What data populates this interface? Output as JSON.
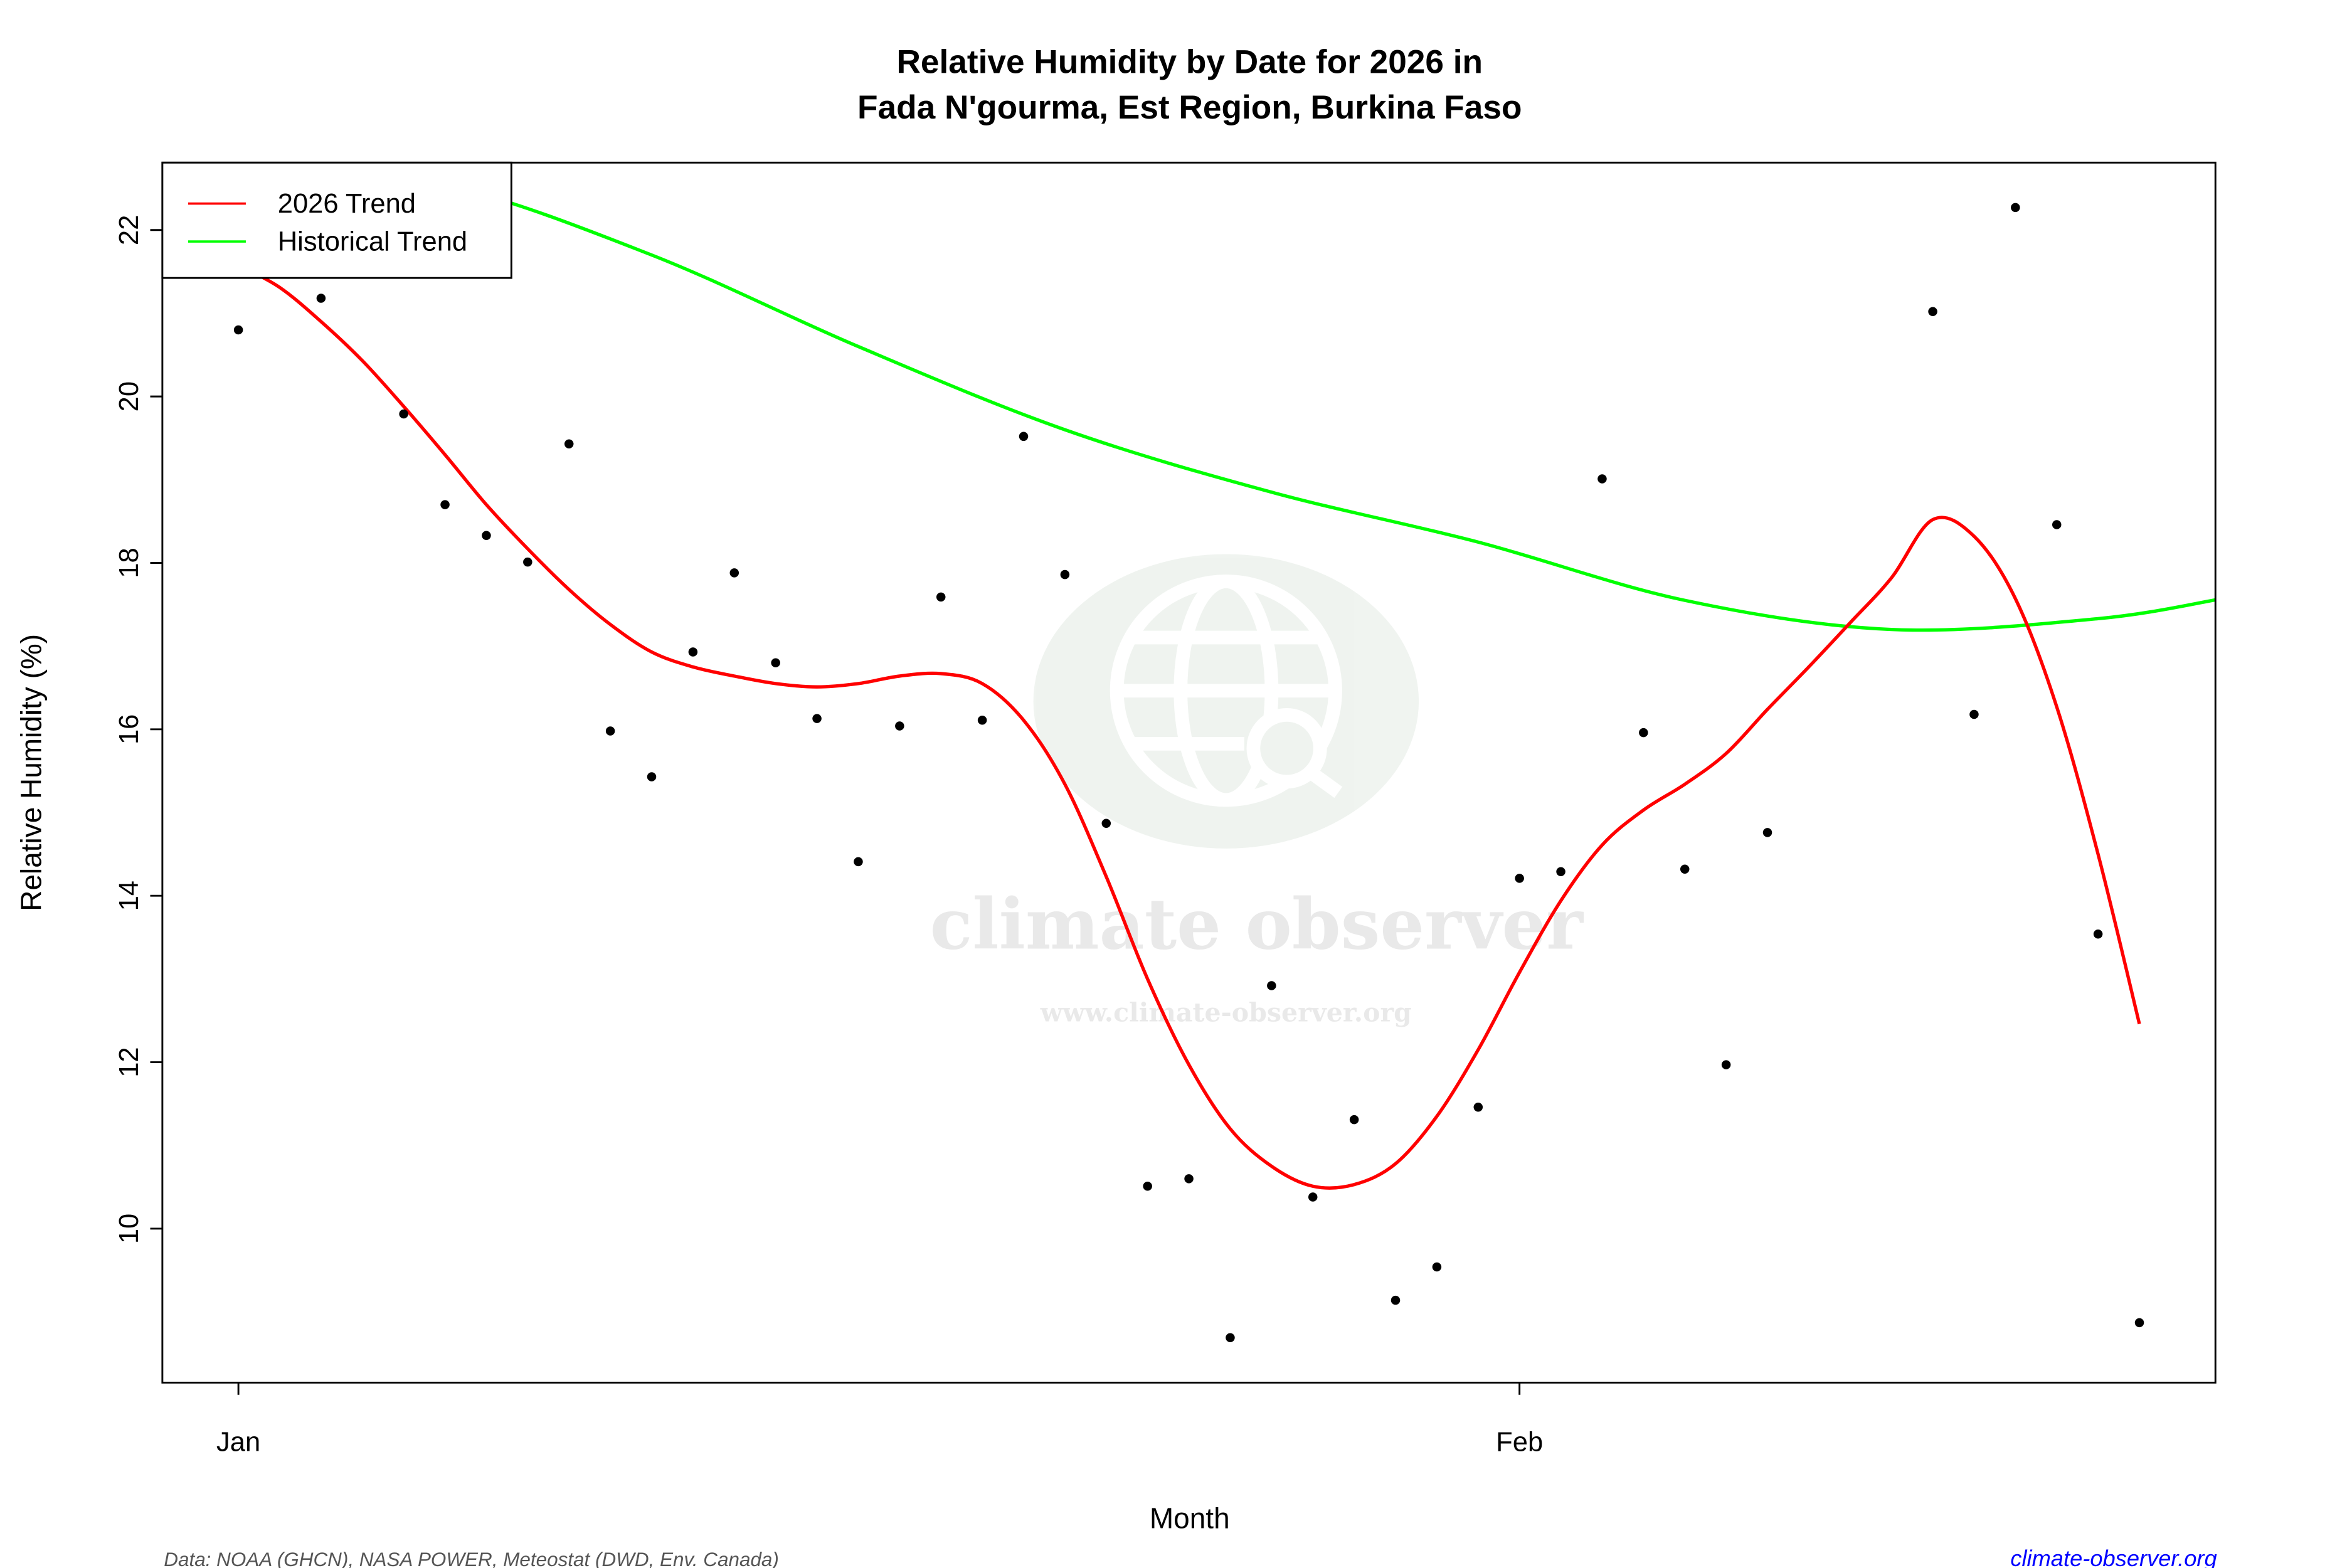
{
  "chart_data": {
    "type": "scatter",
    "title": "Relative Humidity by Date for 2026 in",
    "subtitle": "Fada N'gourma, Est Region, Burkina Faso",
    "xlabel": "Month",
    "ylabel": "Relative Humidity (%)",
    "xlim": [
      "2026-01-01",
      "2026-02-16"
    ],
    "ylim": [
      8.15,
      22.81
    ],
    "x_ticks": [
      {
        "date": "2026-01-01",
        "label": "Jan"
      },
      {
        "date": "2026-02-01",
        "label": "Feb"
      }
    ],
    "y_ticks": [
      10,
      12,
      14,
      16,
      18,
      20,
      22
    ],
    "grid": false,
    "legend": {
      "placement": "top-left",
      "entries": [
        {
          "label": "2026 Trend",
          "color": "#ff0000"
        },
        {
          "label": "Historical Trend",
          "color": "#00ff00"
        }
      ]
    },
    "points": {
      "color": "#000000",
      "x": [
        "2026-01-01",
        "2026-01-03",
        "2026-01-05",
        "2026-01-06",
        "2026-01-07",
        "2026-01-08",
        "2026-01-09",
        "2026-01-10",
        "2026-01-11",
        "2026-01-12",
        "2026-01-13",
        "2026-01-14",
        "2026-01-15",
        "2026-01-16",
        "2026-01-17",
        "2026-01-18",
        "2026-01-19",
        "2026-01-20",
        "2026-01-21",
        "2026-01-22",
        "2026-01-23",
        "2026-01-24",
        "2026-01-25",
        "2026-01-26",
        "2026-01-27",
        "2026-01-28",
        "2026-01-29",
        "2026-01-30",
        "2026-01-31",
        "2026-02-01",
        "2026-02-02",
        "2026-02-03",
        "2026-02-04",
        "2026-02-05",
        "2026-02-06",
        "2026-02-07",
        "2026-02-11",
        "2026-02-12",
        "2026-02-13",
        "2026-02-14",
        "2026-02-15",
        "2026-02-16"
      ],
      "y": [
        20.8,
        21.18,
        19.79,
        18.7,
        18.33,
        18.01,
        19.43,
        15.98,
        15.43,
        16.93,
        17.88,
        16.8,
        16.13,
        14.41,
        16.04,
        17.59,
        16.11,
        19.52,
        17.86,
        14.87,
        10.51,
        10.6,
        8.69,
        12.92,
        10.38,
        11.31,
        9.14,
        9.54,
        11.46,
        14.21,
        14.29,
        19.01,
        15.96,
        14.32,
        11.97,
        14.76,
        21.02,
        16.18,
        22.27,
        18.46,
        13.54,
        8.87
      ]
    },
    "series": [
      {
        "name": "2026 Trend",
        "color": "#ff0000",
        "x": [
          "2026-01-01",
          "2026-01-02",
          "2026-01-03",
          "2026-01-04",
          "2026-01-05",
          "2026-01-06",
          "2026-01-07",
          "2026-01-08",
          "2026-01-09",
          "2026-01-10",
          "2026-01-11",
          "2026-01-12",
          "2026-01-13",
          "2026-01-14",
          "2026-01-15",
          "2026-01-16",
          "2026-01-17",
          "2026-01-18",
          "2026-01-19",
          "2026-01-20",
          "2026-01-21",
          "2026-01-22",
          "2026-01-23",
          "2026-01-24",
          "2026-01-25",
          "2026-01-26",
          "2026-01-27",
          "2026-01-28",
          "2026-01-29",
          "2026-01-30",
          "2026-01-31",
          "2026-02-01",
          "2026-02-02",
          "2026-02-03",
          "2026-02-04",
          "2026-02-05",
          "2026-02-06",
          "2026-02-07",
          "2026-02-08",
          "2026-02-09",
          "2026-02-10",
          "2026-02-11",
          "2026-02-12",
          "2026-02-13",
          "2026-02-14",
          "2026-02-15",
          "2026-02-16"
        ],
        "y": [
          21.58,
          21.31,
          20.9,
          20.43,
          19.88,
          19.3,
          18.7,
          18.17,
          17.68,
          17.26,
          16.93,
          16.75,
          16.64,
          16.55,
          16.51,
          16.55,
          16.64,
          16.67,
          16.55,
          16.11,
          15.34,
          14.23,
          13.0,
          11.97,
          11.2,
          10.75,
          10.51,
          10.53,
          10.78,
          11.35,
          12.15,
          13.08,
          13.94,
          14.61,
          15.03,
          15.34,
          15.71,
          16.24,
          16.75,
          17.28,
          17.82,
          18.52,
          18.32,
          17.57,
          16.27,
          14.5,
          12.46
        ]
      },
      {
        "name": "Historical Trend",
        "color": "#00ff00",
        "x": [
          "2025-12-30",
          "2026-01-01",
          "2026-01-06",
          "2026-01-11",
          "2026-01-16",
          "2026-01-21",
          "2026-01-26",
          "2026-01-31",
          "2026-02-05",
          "2026-02-10",
          "2026-02-15",
          "2026-02-18"
        ],
        "y": [
          23.3,
          22.9,
          22.55,
          21.7,
          20.6,
          19.6,
          18.85,
          18.25,
          17.55,
          17.2,
          17.33,
          17.57
        ]
      }
    ]
  },
  "watermark": {
    "name": "climate observer",
    "url": "www.climate-observer.org",
    "icon": "globe-search-icon"
  },
  "footer": {
    "source": "Data: NOAA (GHCN), NASA POWER, Meteostat (DWD, Env. Canada)",
    "link": "climate-observer.org",
    "link_color": "#0000ff"
  }
}
